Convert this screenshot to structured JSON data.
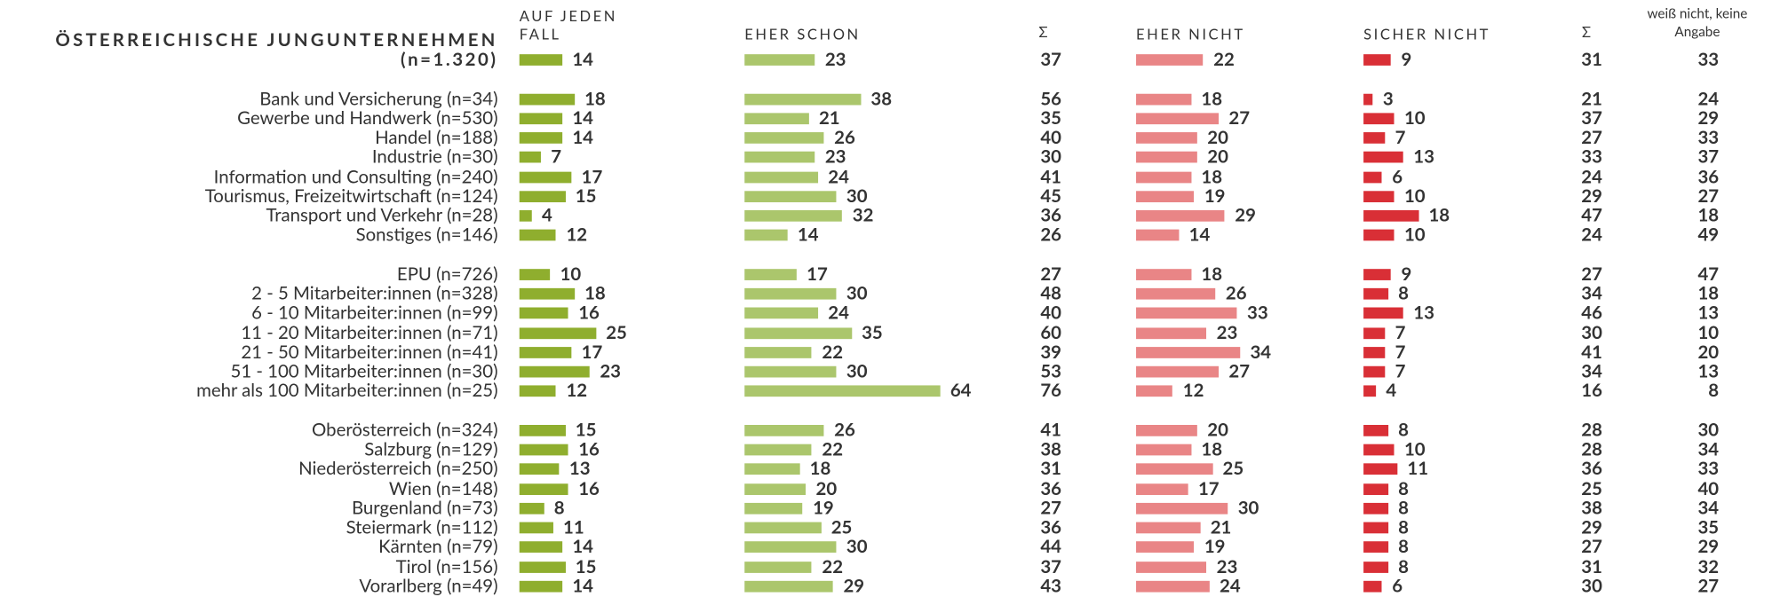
{
  "chart_data": {
    "type": "bar_table",
    "title": "ÖSTERREICHISCHE JUNGUNTERNEHMEN",
    "categories": [
      "(n=1.320)",
      "Bank und Versicherung (n=34)",
      "Gewerbe und Handwerk (n=530)",
      "Handel (n=188)",
      "Industrie (n=30)",
      "Information und Consulting (n=240)",
      "Tourismus, Freizeitwirtschaft (n=124)",
      "Transport und Verkehr (n=28)",
      "Sonstiges (n=146)",
      "EPU (n=726)",
      "2 - 5 Mitarbeiter:innen (n=328)",
      "6 - 10 Mitarbeiter:innen (n=99)",
      "11 - 20 Mitarbeiter:innen (n=71)",
      "21 - 50 Mitarbeiter:innen (n=41)",
      "51 - 100 Mitarbeiter:innen (n=30)",
      "mehr als 100 Mitarbeiter:innen (n=25)",
      "Oberösterreich (n=324)",
      "Salzburg (n=129)",
      "Niederösterreich (n=250)",
      "Wien (n=148)",
      "Burgenland (n=73)",
      "Steiermark (n=112)",
      "Kärnten (n=79)",
      "Tirol (n=156)",
      "Vorarlberg (n=49)"
    ],
    "series": [
      {
        "name": "AUF JEDEN FALL",
        "color": "#8fae2e",
        "values": [
          14,
          18,
          14,
          14,
          7,
          17,
          15,
          4,
          12,
          10,
          18,
          16,
          25,
          17,
          23,
          12,
          15,
          16,
          13,
          16,
          8,
          11,
          14,
          15,
          14
        ]
      },
      {
        "name": "EHER SCHON",
        "color": "#abc66c",
        "values": [
          23,
          38,
          21,
          26,
          23,
          24,
          30,
          32,
          14,
          17,
          30,
          24,
          35,
          22,
          30,
          64,
          26,
          22,
          18,
          20,
          19,
          25,
          30,
          22,
          29
        ]
      },
      {
        "name": "Σ",
        "values": [
          37,
          56,
          35,
          40,
          30,
          41,
          45,
          36,
          26,
          27,
          48,
          40,
          60,
          39,
          53,
          76,
          41,
          38,
          31,
          36,
          27,
          36,
          44,
          37,
          43
        ]
      },
      {
        "name": "EHER NICHT",
        "color": "#e98586",
        "values": [
          22,
          18,
          27,
          20,
          20,
          18,
          19,
          29,
          14,
          18,
          26,
          33,
          23,
          34,
          27,
          12,
          20,
          18,
          25,
          17,
          30,
          21,
          19,
          23,
          24
        ]
      },
      {
        "name": "SICHER NICHT",
        "color": "#d92f36",
        "values": [
          9,
          3,
          10,
          7,
          13,
          6,
          10,
          18,
          10,
          9,
          8,
          13,
          7,
          7,
          7,
          4,
          8,
          10,
          11,
          8,
          8,
          8,
          8,
          8,
          6
        ]
      },
      {
        "name": "Σ",
        "values": [
          31,
          21,
          37,
          27,
          33,
          24,
          29,
          47,
          24,
          27,
          34,
          46,
          30,
          41,
          34,
          16,
          28,
          28,
          36,
          25,
          38,
          29,
          27,
          31,
          30
        ]
      },
      {
        "name": "weiß nicht, keine Angabe",
        "values": [
          33,
          24,
          29,
          33,
          37,
          36,
          27,
          18,
          49,
          47,
          18,
          13,
          10,
          20,
          13,
          8,
          30,
          34,
          33,
          40,
          34,
          35,
          29,
          32,
          27
        ]
      }
    ]
  }
}
